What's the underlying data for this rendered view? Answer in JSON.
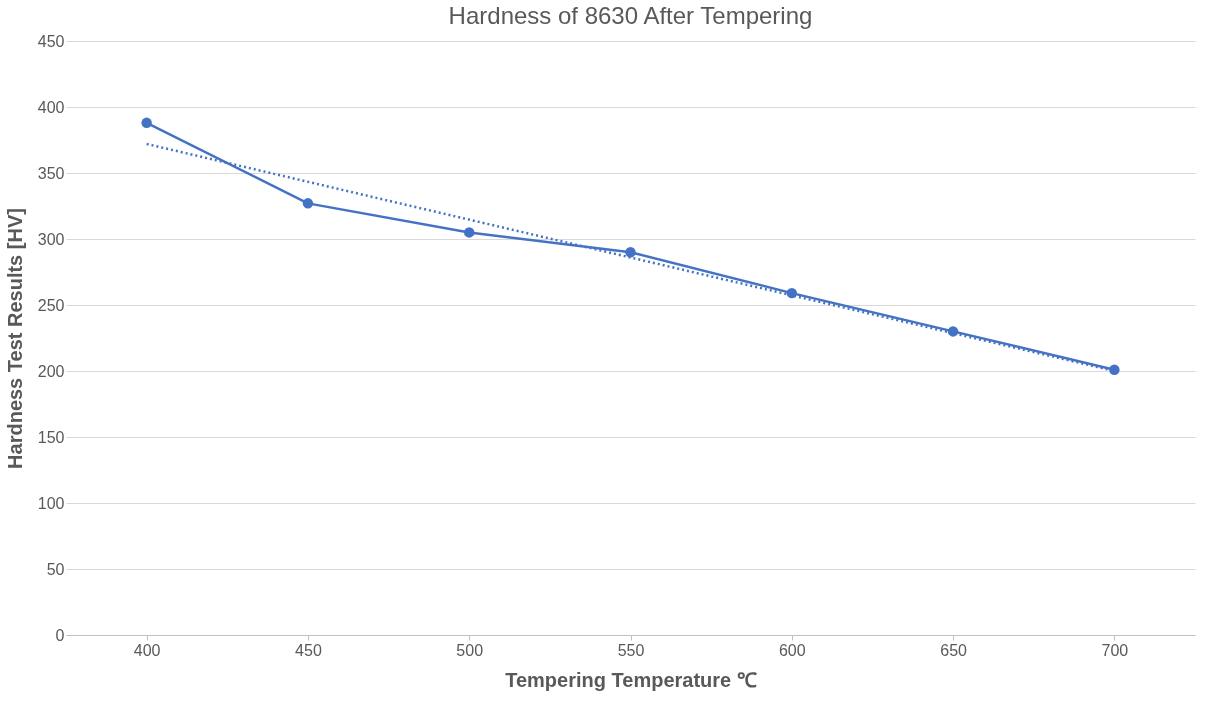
{
  "chart_data": {
    "type": "line",
    "title": "Hardness of 8630 After Tempering",
    "xlabel": "Tempering Temperature ℃",
    "ylabel": "Hardness Test Results [HV]",
    "x": [
      400,
      450,
      500,
      550,
      600,
      650,
      700
    ],
    "series": [
      {
        "color": "#4472c4",
        "values": [
          388,
          327,
          305,
          290,
          259,
          230,
          201
        ],
        "marker": "circle",
        "line_style": "solid"
      },
      {
        "type": "line",
        "color": "#4472c4",
        "x": [
          400,
          700
        ],
        "values": [
          372,
          200
        ],
        "marker": "none",
        "line_style": "dotted"
      }
    ],
    "xlim": [
      375,
      725
    ],
    "xticks": [
      400,
      450,
      500,
      550,
      600,
      650,
      700
    ],
    "ylim": [
      0,
      450
    ],
    "yticks": [
      0,
      50,
      100,
      150,
      200,
      250,
      300,
      350,
      400,
      450
    ],
    "grid": "y",
    "legend": false
  }
}
